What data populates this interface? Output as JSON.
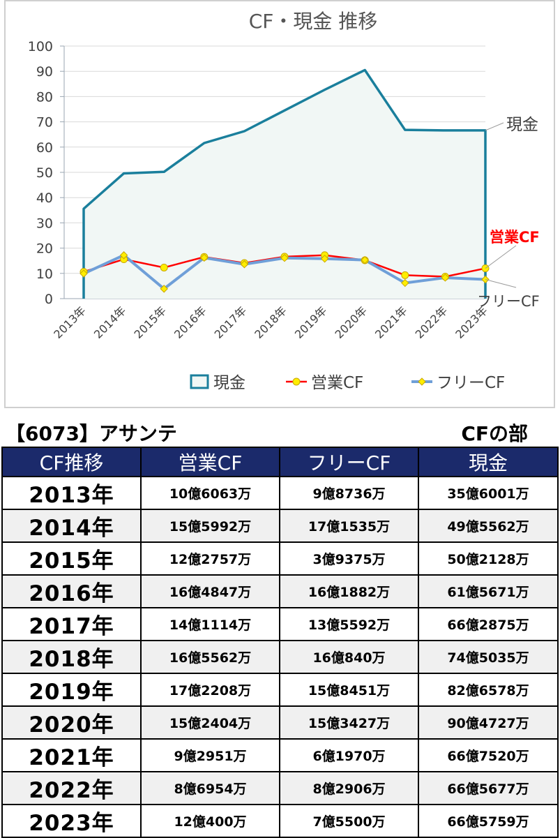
{
  "chart_data": {
    "type": "line",
    "title": "CF・現金 推移",
    "categories": [
      "2013年",
      "2014年",
      "2015年",
      "2016年",
      "2017年",
      "2018年",
      "2019年",
      "2020年",
      "2021年",
      "2022年",
      "2023年"
    ],
    "ylim": [
      0,
      100
    ],
    "yticks": [
      0,
      10,
      20,
      30,
      40,
      50,
      60,
      70,
      80,
      90,
      100
    ],
    "grid": true,
    "legend_placement": "bottom",
    "series": [
      {
        "name": "現金",
        "kind": "area",
        "color": "#1a7f9c",
        "fill": "#f1f7f5",
        "values": [
          35.6,
          49.6,
          50.2,
          61.6,
          66.3,
          74.5,
          82.7,
          90.5,
          66.8,
          66.6,
          66.6
        ]
      },
      {
        "name": "営業CF",
        "kind": "line",
        "color": "#ff0000",
        "marker": "circle",
        "marker_color": "#ffee00",
        "values": [
          10.6,
          15.6,
          12.3,
          16.5,
          14.1,
          16.6,
          17.2,
          15.2,
          9.3,
          8.7,
          12.0
        ]
      },
      {
        "name": "フリーCF",
        "kind": "line",
        "color": "#6f9fd8",
        "marker": "diamond",
        "marker_color": "#ffee00",
        "values": [
          9.9,
          17.2,
          3.9,
          16.2,
          13.6,
          16.1,
          15.8,
          15.3,
          6.2,
          8.3,
          7.6
        ]
      }
    ],
    "labels": {
      "cash": "現金",
      "operating": "営業CF",
      "free": "フリーCF"
    }
  },
  "header": {
    "company": "【6073】アサンテ",
    "section": "CFの部"
  },
  "table": {
    "columns": [
      "CF推移",
      "営業CF",
      "フリーCF",
      "現金"
    ],
    "rows": [
      {
        "year": "2013年",
        "op": "10億6063万",
        "free": "9億8736万",
        "cash": "35億6001万"
      },
      {
        "year": "2014年",
        "op": "15億5992万",
        "free": "17億1535万",
        "cash": "49億5562万"
      },
      {
        "year": "2015年",
        "op": "12億2757万",
        "free": "3億9375万",
        "cash": "50億2128万"
      },
      {
        "year": "2016年",
        "op": "16億4847万",
        "free": "16億1882万",
        "cash": "61億5671万"
      },
      {
        "year": "2017年",
        "op": "14億1114万",
        "free": "13億5592万",
        "cash": "66億2875万"
      },
      {
        "year": "2018年",
        "op": "16億5562万",
        "free": "16億840万",
        "cash": "74億5035万"
      },
      {
        "year": "2019年",
        "op": "17億2208万",
        "free": "15億8451万",
        "cash": "82億6578万"
      },
      {
        "year": "2020年",
        "op": "15億2404万",
        "free": "15億3427万",
        "cash": "90億4727万"
      },
      {
        "year": "2021年",
        "op": "9億2951万",
        "free": "6億1970万",
        "cash": "66億7520万"
      },
      {
        "year": "2022年",
        "op": "8億6954万",
        "free": "8億2906万",
        "cash": "66億5677万"
      },
      {
        "year": "2023年",
        "op": "12億400万",
        "free": "7億5500万",
        "cash": "66億5759万"
      }
    ]
  }
}
